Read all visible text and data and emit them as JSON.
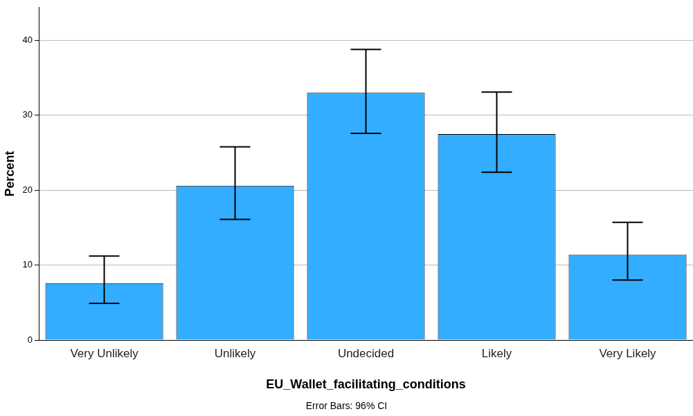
{
  "chart_data": {
    "type": "bar",
    "xlabel": "EU_Wallet_facilitating_conditions",
    "ylabel": "Percent",
    "categories": [
      "Very Unlikely",
      "Unlikely",
      "Undecided",
      "Likely",
      "Very Likely"
    ],
    "values": [
      7.6,
      20.6,
      33.0,
      27.5,
      11.4
    ],
    "errors": [
      [
        4.9,
        11.2
      ],
      [
        16.1,
        25.8
      ],
      [
        27.6,
        38.8
      ],
      [
        22.4,
        33.1
      ],
      [
        8.0,
        15.7
      ]
    ],
    "color": "#33adff",
    "ylim": [
      0,
      44.4
    ],
    "yticks": [
      0,
      10,
      20,
      30,
      40
    ],
    "grid": "y",
    "annotations": [
      "Error Bars: 96% CI"
    ]
  }
}
